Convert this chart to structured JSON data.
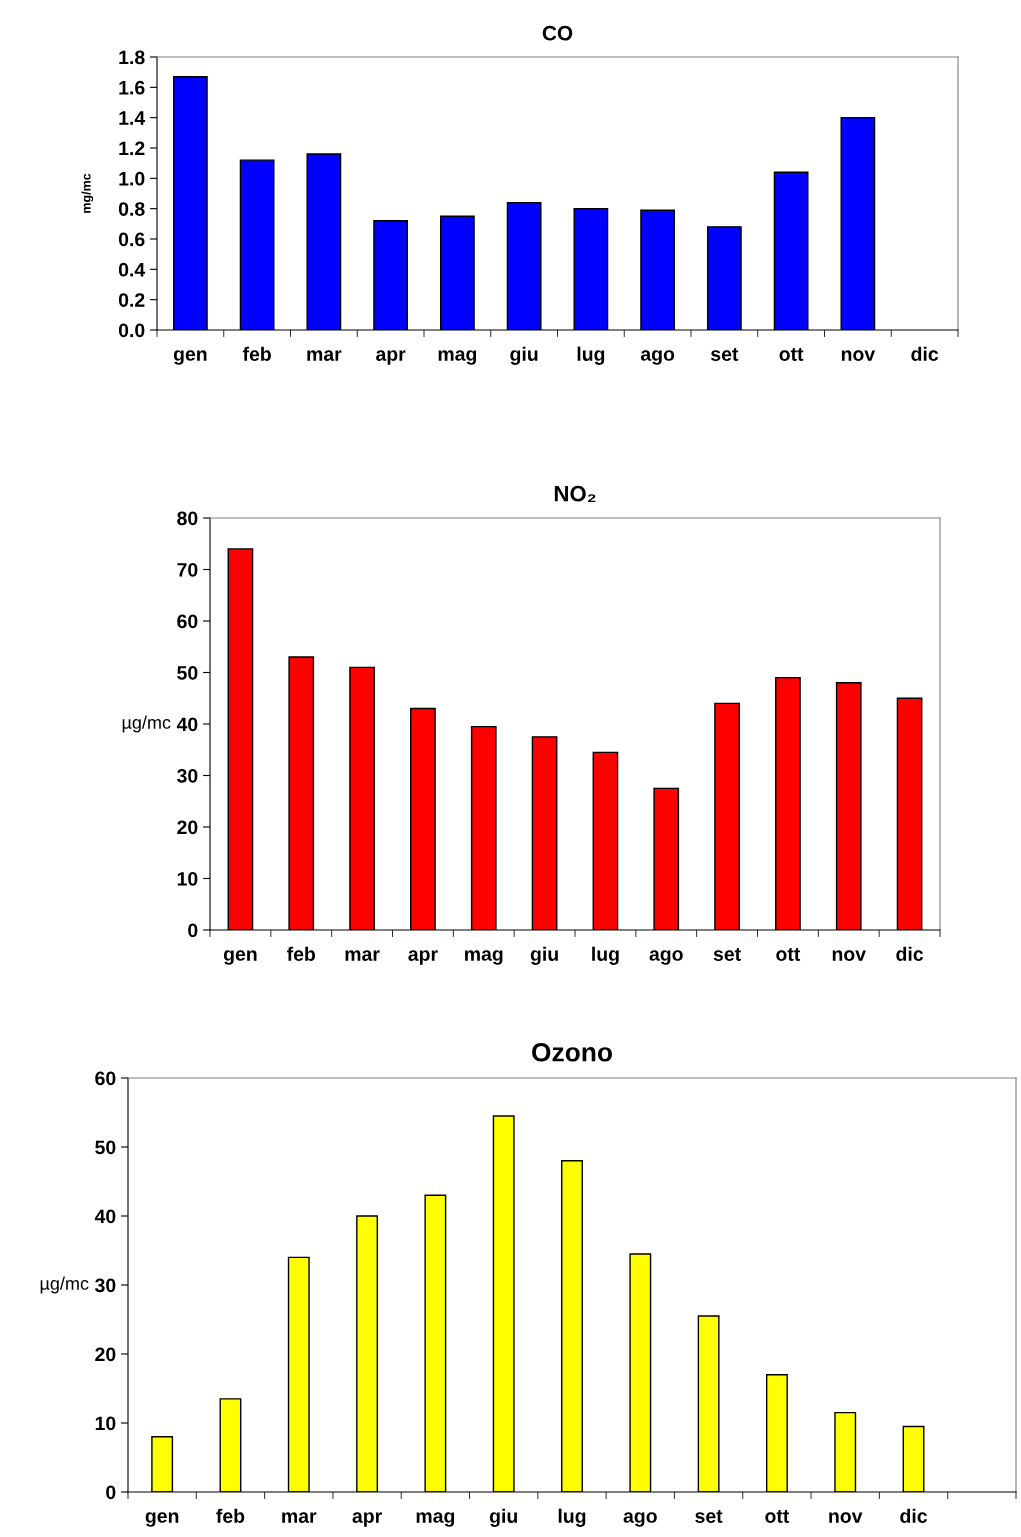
{
  "chart_data": [
    {
      "type": "bar",
      "title": "CO",
      "ylabel": "mg/mc",
      "categories": [
        "gen",
        "feb",
        "mar",
        "apr",
        "mag",
        "giu",
        "lug",
        "ago",
        "set",
        "ott",
        "nov",
        "dic"
      ],
      "values": [
        1.67,
        1.12,
        1.16,
        0.72,
        0.75,
        0.84,
        0.8,
        0.79,
        0.68,
        1.04,
        1.4,
        null
      ],
      "color": "#0000ff",
      "ylim": [
        0,
        1.8
      ],
      "yticks": [
        {
          "value": 0,
          "label": "0.0"
        },
        {
          "value": 0.2,
          "label": "0.2"
        },
        {
          "value": 0.4,
          "label": "0.4"
        },
        {
          "value": 0.6,
          "label": "0.6"
        },
        {
          "value": 0.8,
          "label": "0.8"
        },
        {
          "value": 1.0,
          "label": "1.0"
        },
        {
          "value": 1.2,
          "label": "1.2"
        },
        {
          "value": 1.4,
          "label": "1.4"
        },
        {
          "value": 1.6,
          "label": "1.6"
        },
        {
          "value": 1.8,
          "label": "1.8"
        }
      ],
      "grid": false
    },
    {
      "type": "bar",
      "title": "NO₂",
      "ylabel": "µg/mc",
      "categories": [
        "gen",
        "feb",
        "mar",
        "apr",
        "mag",
        "giu",
        "lug",
        "ago",
        "set",
        "ott",
        "nov",
        "dic"
      ],
      "values": [
        74,
        53,
        51,
        43,
        39.5,
        37.5,
        34.5,
        27.5,
        44,
        49,
        48,
        45
      ],
      "color": "#ff0000",
      "ylim": [
        0,
        80
      ],
      "yticks": [
        0,
        10,
        20,
        30,
        40,
        50,
        60,
        70,
        80
      ],
      "grid": false
    },
    {
      "type": "bar",
      "title": "Ozono",
      "ylabel": "µg/mc",
      "categories": [
        "gen",
        "feb",
        "mar",
        "apr",
        "mag",
        "giu",
        "lug",
        "ago",
        "set",
        "ott",
        "nov",
        "dic",
        null
      ],
      "values": [
        8,
        13.5,
        34,
        40,
        43,
        54.5,
        48,
        34.5,
        25.5,
        17,
        11.5,
        9.5,
        null
      ],
      "color": "#ffff00",
      "ylim": [
        0,
        60
      ],
      "yticks": [
        0,
        10,
        20,
        30,
        40,
        50,
        60
      ],
      "grid": false
    }
  ]
}
